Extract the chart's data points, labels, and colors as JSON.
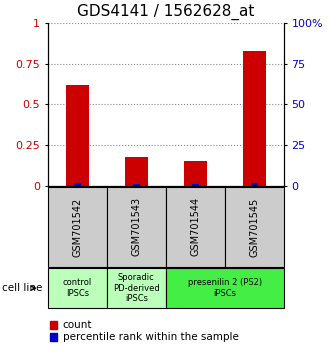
{
  "title": "GDS4141 / 1562628_at",
  "samples": [
    "GSM701542",
    "GSM701543",
    "GSM701544",
    "GSM701545"
  ],
  "red_values": [
    0.62,
    0.18,
    0.15,
    0.83
  ],
  "blue_values": [
    0.015,
    0.01,
    0.01,
    0.02
  ],
  "ylim": [
    0,
    1
  ],
  "yticks": [
    0,
    0.25,
    0.5,
    0.75,
    1.0
  ],
  "ytick_labels": [
    "0",
    "0.25",
    "0.5",
    "0.75",
    "1"
  ],
  "right_ytick_labels": [
    "0",
    "25",
    "50",
    "75",
    "100%"
  ],
  "red_color": "#cc0000",
  "blue_color": "#0000cc",
  "grid_color": "#888888",
  "cell_line_label": "cell line",
  "groups": [
    {
      "label": "control\nIPSCs",
      "samples": [
        0
      ],
      "color": "#bbffbb"
    },
    {
      "label": "Sporadic\nPD-derived\niPSCs",
      "samples": [
        1
      ],
      "color": "#bbffbb"
    },
    {
      "label": "presenilin 2 (PS2)\niPSCs",
      "samples": [
        2,
        3
      ],
      "color": "#44ee44"
    }
  ],
  "legend_count_label": "count",
  "legend_percentile_label": "percentile rank within the sample",
  "sample_box_color": "#cccccc",
  "title_fontsize": 11,
  "tick_fontsize": 8,
  "label_fontsize": 8
}
